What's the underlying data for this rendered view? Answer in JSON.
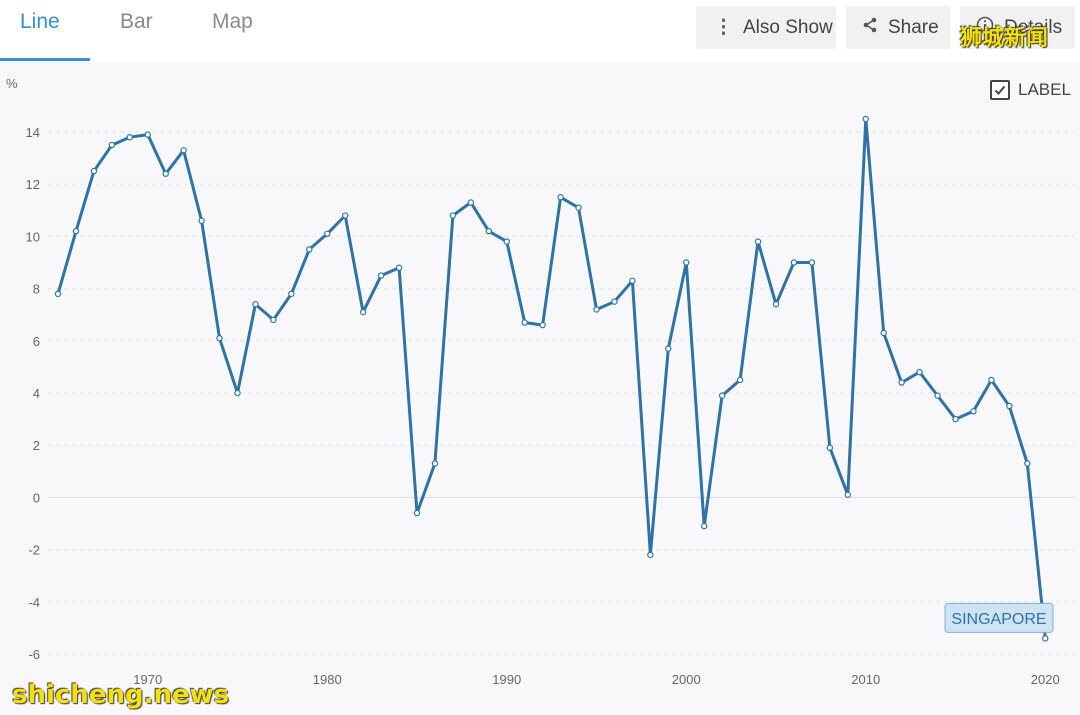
{
  "tabs": [
    {
      "label": "Line",
      "active": true
    },
    {
      "label": "Bar",
      "active": false
    },
    {
      "label": "Map",
      "active": false
    }
  ],
  "toolbar": {
    "also_show_label": "Also Show",
    "share_label": "Share",
    "details_label": "Details"
  },
  "label_toggle": {
    "label": "LABEL",
    "checked": true
  },
  "watermarks": {
    "top": "狮城新闻",
    "bottom": "shicheng.news"
  },
  "colors": {
    "accent": "#3b8ed3",
    "line": "#2e73a6",
    "badge_bg": "#cfe3f3",
    "badge_border": "#7fb0d8"
  },
  "chart_data": {
    "type": "line",
    "ylabel": "%",
    "xlim": [
      1965,
      2021
    ],
    "ylim": [
      -6,
      15
    ],
    "yticks": [
      14,
      12,
      10,
      8,
      6,
      4,
      2,
      0,
      -2,
      -4,
      -6
    ],
    "xticks": [
      1970,
      1980,
      1990,
      2000,
      2010,
      2020
    ],
    "grid": true,
    "series": [
      {
        "name": "SINGAPORE",
        "x": [
          1965,
          1966,
          1967,
          1968,
          1969,
          1970,
          1971,
          1972,
          1973,
          1974,
          1975,
          1976,
          1977,
          1978,
          1979,
          1980,
          1981,
          1982,
          1983,
          1984,
          1985,
          1986,
          1987,
          1988,
          1989,
          1990,
          1991,
          1992,
          1993,
          1994,
          1995,
          1996,
          1997,
          1998,
          1999,
          2000,
          2001,
          2002,
          2003,
          2004,
          2005,
          2006,
          2007,
          2008,
          2009,
          2010,
          2011,
          2012,
          2013,
          2014,
          2015,
          2016,
          2017,
          2018,
          2019,
          2020
        ],
        "values": [
          7.8,
          10.2,
          12.5,
          13.5,
          13.8,
          13.9,
          12.4,
          13.3,
          10.6,
          6.1,
          4.0,
          7.4,
          6.8,
          7.8,
          9.5,
          10.1,
          10.8,
          7.1,
          8.5,
          8.8,
          -0.6,
          1.3,
          10.8,
          11.3,
          10.2,
          9.8,
          6.7,
          6.6,
          11.5,
          11.1,
          7.2,
          7.5,
          8.3,
          -2.2,
          5.7,
          9.0,
          -1.1,
          3.9,
          4.5,
          9.8,
          7.4,
          9.0,
          9.0,
          1.9,
          0.1,
          14.5,
          6.3,
          4.4,
          4.8,
          3.9,
          3.0,
          3.3,
          4.5,
          3.5,
          1.3,
          -5.4
        ]
      }
    ]
  }
}
